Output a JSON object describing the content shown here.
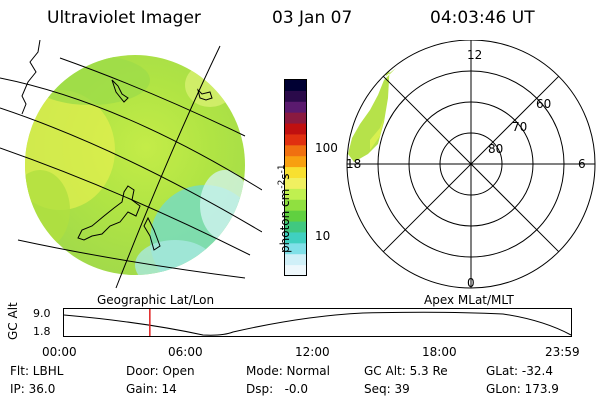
{
  "header": {
    "instrument": "Ultraviolet Imager",
    "date": "03 Jan 07",
    "time": "04:03:46 UT"
  },
  "colorbar": {
    "unit_label": "photon cm",
    "unit_exp1": "-2",
    "unit_s": "s",
    "unit_exp2": "-1",
    "tick_100": "100",
    "tick_10": "10",
    "colors": [
      "#000033",
      "#2a0a4a",
      "#5a1a6e",
      "#8a1a40",
      "#c01010",
      "#e03010",
      "#f07010",
      "#f8a010",
      "#f8e030",
      "#f0f060",
      "#c0f050",
      "#90e040",
      "#60d040",
      "#40c880",
      "#40d0c0",
      "#80e0e8",
      "#d0f0f8",
      "#eef8fc"
    ]
  },
  "left_panel": {
    "label": "Geographic Lat/Lon"
  },
  "right_panel": {
    "label": "Apex MLat/MLT",
    "mlt_labels": [
      "12",
      "18",
      "6",
      "0"
    ],
    "mlat_labels": [
      "60",
      "70",
      "80"
    ]
  },
  "timeline": {
    "ylabel": "GC Alt",
    "y_max_label": "9.0",
    "y_min_label": "1.8",
    "x_ticks": [
      "00:00",
      "06:00",
      "12:00",
      "18:00",
      "23:59"
    ],
    "current_time_fraction": 0.1693
  },
  "info": {
    "flt": "Flt: LBHL",
    "ip": "IP: 36.0",
    "door": "Door: Open",
    "gain": "Gain: 14",
    "mode": "Mode: Normal",
    "dsp": "Dsp:   -0.0",
    "gcalt": "GC Alt: 5.3 Re",
    "seq": "Seq: 39",
    "glat": "GLat: -32.4",
    "glon": "GLon: 173.9"
  }
}
